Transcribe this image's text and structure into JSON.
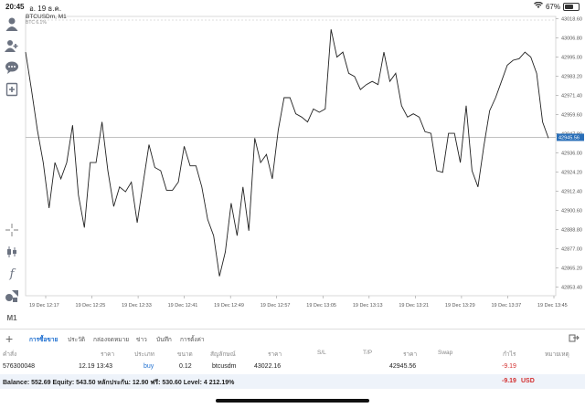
{
  "status": {
    "time": "20:45",
    "date": "อ. 19 ธ.ค.",
    "battery": "67%",
    "battery_level": 0.67
  },
  "sidebar": {
    "items": [
      "profile-icon",
      "accounts-icon",
      "chat-icon",
      "new-order-icon",
      "crosshair-icon",
      "candles-icon",
      "function-icon",
      "objects-icon"
    ],
    "timeframe": "M1"
  },
  "chart_data": {
    "type": "line",
    "symbol": "BTCUSDm, M1",
    "sub": "BTC 6.1%",
    "ylim": [
      42848,
      43020
    ],
    "y_ticks": [
      "43018.60",
      "43006.80",
      "42995.00",
      "42983.20",
      "42971.40",
      "42959.60",
      "42947.80",
      "42936.00",
      "42924.20",
      "42912.40",
      "42900.60",
      "42888.80",
      "42877.00",
      "42865.20",
      "42853.40"
    ],
    "x_ticks": [
      "19 Dec 12:17",
      "19 Dec 12:25",
      "19 Dec 12:33",
      "19 Dec 12:41",
      "19 Dec 12:49",
      "19 Dec 12:57",
      "19 Dec 13:05",
      "19 Dec 13:13",
      "19 Dec 13:21",
      "19 Dec 13:29",
      "19 Dec 13:37",
      "19 Dec 13:45"
    ],
    "bid_price": "42945.56",
    "bid_value": 42945.56,
    "values": [
      42998,
      42975,
      42950,
      42930,
      42902,
      42930,
      42920,
      42930,
      42953,
      42910,
      42890,
      42930,
      42930,
      42955,
      42925,
      42903,
      42915,
      42912,
      42918,
      42893,
      42917,
      42941,
      42927,
      42925,
      42913,
      42913,
      42918,
      42940,
      42928,
      42928,
      42915,
      42895,
      42885,
      42860,
      42875,
      42905,
      42885,
      42915,
      42888,
      42945,
      42930,
      42935,
      42920,
      42950,
      42970,
      42970,
      42960,
      42958,
      42955,
      42963,
      42961,
      42963,
      43012,
      42995,
      42998,
      42985,
      42983,
      42975,
      42978,
      42980,
      42978,
      42998,
      42980,
      42985,
      42965,
      42958,
      42960,
      42958,
      42949,
      42948,
      42925,
      42924,
      42948,
      42948,
      42930,
      42965,
      42925,
      42915,
      42940,
      42962,
      42970,
      42980,
      42990,
      42993,
      42994,
      42998,
      42995,
      42985,
      42955,
      42945
    ]
  },
  "tabs": {
    "items": [
      "การซื้อขาย",
      "ประวัติ",
      "กล่องจดหมาย",
      "ข่าว",
      "บันทึก",
      "การตั้งค่า"
    ]
  },
  "table": {
    "headers": {
      "order": "คำสั่ง",
      "price": "ราคา",
      "type": "ประเภท",
      "volume": "ขนาด",
      "symbol": "สัญลักษณ์",
      "price2": "ราคา",
      "sl": "S/L",
      "tp": "T/P",
      "price3": "ราคา",
      "swap": "Swap",
      "profit": "กำไร",
      "comment": "หมายเหตุ"
    },
    "row": {
      "order": "576300048",
      "time": "12.19 13:43",
      "type": "buy",
      "volume": "0.12",
      "symbol": "btcusdm",
      "open_price": "43022.16",
      "current_price": "42945.56",
      "profit": "-9.19"
    }
  },
  "balance": {
    "text": "Balance: 552.69 Equity: 543.50 หลักประกัน: 12.90 ฟรี: 530.60 Level: 4 212.19%",
    "profit": "-9.19",
    "currency": "USD"
  },
  "colors": {
    "accent": "#1e6fd0",
    "negative": "#d32f2f",
    "price_tag": "#2a6fb8"
  }
}
